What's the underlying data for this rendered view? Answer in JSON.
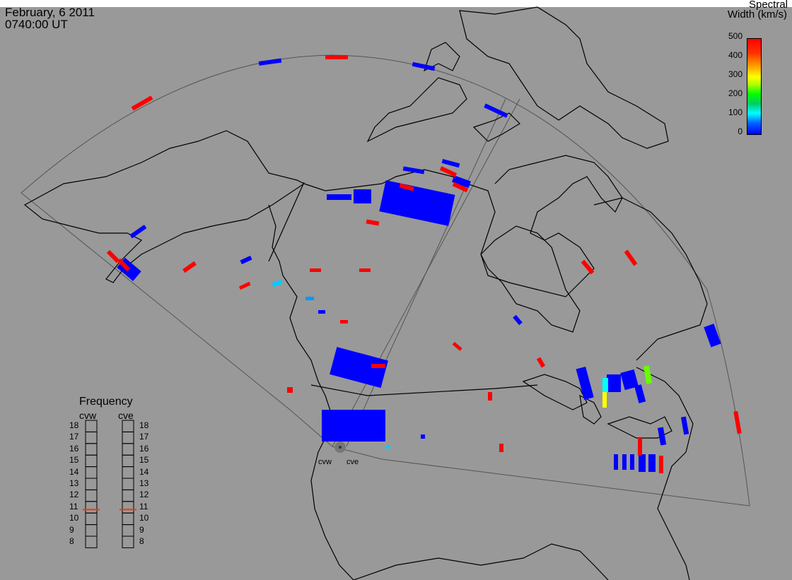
{
  "header": {
    "date": "February, 6 2011",
    "time": "0740:00 UT"
  },
  "colorbar": {
    "title_line1": "Spectral",
    "title_line2": "Width (km/s)",
    "ticks": [
      "500",
      "400",
      "300",
      "200",
      "100",
      "0"
    ],
    "colors": [
      "#0000ff",
      "#00ffff",
      "#00ff00",
      "#ffff00",
      "#ff0000"
    ]
  },
  "frequency": {
    "title": "Frequency",
    "radars": [
      "cvw",
      "cve"
    ],
    "levels": [
      "18",
      "17",
      "16",
      "15",
      "14",
      "13",
      "12",
      "11",
      "10",
      "9",
      "8"
    ],
    "cvw_value": 10.8,
    "cve_value": 10.8,
    "marker_color": "#ff3300"
  },
  "sites": {
    "west": "cvw",
    "east": "cve"
  },
  "map": {
    "background": "#999999",
    "line_color": "#000000",
    "fov_color": "#444444",
    "data_colors": {
      "blue": "#0000ff",
      "red": "#ff0000",
      "cyan": "#00ccff",
      "green": "#66ff00",
      "yellow": "#ffff00"
    }
  }
}
